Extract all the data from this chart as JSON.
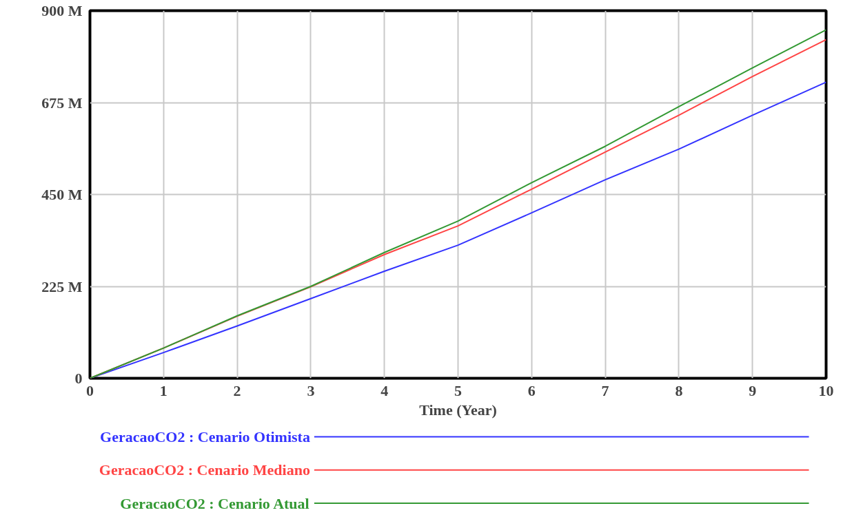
{
  "chart_data": {
    "type": "line",
    "xlabel": "Time (Year)",
    "x": [
      0,
      1,
      2,
      3,
      4,
      5,
      6,
      7,
      8,
      9,
      10
    ],
    "series": [
      {
        "name": "GeracaoCO2 : Cenario Otimista",
        "color": "#3333ff",
        "values": [
          0,
          63,
          128,
          195,
          262,
          326,
          405,
          486,
          561,
          644,
          725
        ]
      },
      {
        "name": "GeracaoCO2 : Cenario Mediano",
        "color": "#ff4444",
        "values": [
          0,
          74,
          152,
          224,
          303,
          373,
          463,
          554,
          644,
          739,
          829
        ]
      },
      {
        "name": "GeracaoCO2 : Cenario Atual",
        "color": "#339933",
        "values": [
          0,
          74,
          153,
          225,
          308,
          385,
          479,
          568,
          665,
          760,
          853
        ]
      }
    ],
    "xlim": [
      0,
      10
    ],
    "xticks": [
      0,
      1,
      2,
      3,
      4,
      5,
      6,
      7,
      8,
      9,
      10
    ],
    "ylim": [
      0,
      900
    ],
    "yticks": [
      {
        "value": 0,
        "label": "0"
      },
      {
        "value": 225,
        "label": "225 M"
      },
      {
        "value": 450,
        "label": "450 M"
      },
      {
        "value": 675,
        "label": "675 M"
      },
      {
        "value": 900,
        "label": "900 M"
      }
    ],
    "grid": true,
    "legend": "bottom",
    "line_style": "solid",
    "marker": "none"
  }
}
